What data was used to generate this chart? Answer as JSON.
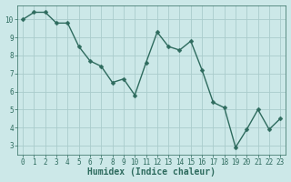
{
  "x": [
    0,
    1,
    2,
    3,
    4,
    5,
    6,
    7,
    8,
    9,
    10,
    11,
    12,
    13,
    14,
    15,
    16,
    17,
    18,
    19,
    20,
    21,
    22,
    23
  ],
  "y": [
    10.0,
    10.4,
    10.4,
    9.8,
    9.8,
    8.5,
    7.7,
    7.4,
    6.5,
    6.7,
    5.8,
    7.6,
    9.3,
    8.5,
    8.3,
    8.8,
    7.2,
    5.4,
    5.1,
    2.9,
    3.9,
    5.0,
    3.9,
    4.5
  ],
  "color": "#2e6b5e",
  "bg_color": "#cce8e8",
  "grid_color_major": "#aacccc",
  "grid_color_minor": "#bbdddd",
  "xlabel": "Humidex (Indice chaleur)",
  "ylim": [
    2.5,
    10.8
  ],
  "xlim": [
    -0.5,
    23.5
  ],
  "yticks": [
    3,
    4,
    5,
    6,
    7,
    8,
    9,
    10
  ],
  "xticks": [
    0,
    1,
    2,
    3,
    4,
    5,
    6,
    7,
    8,
    9,
    10,
    11,
    12,
    13,
    14,
    15,
    16,
    17,
    18,
    19,
    20,
    21,
    22,
    23
  ],
  "tick_fontsize": 5.5,
  "xlabel_fontsize": 7.0,
  "linewidth": 1.0,
  "markersize": 2.5,
  "fig_width": 3.2,
  "fig_height": 2.0,
  "dpi": 100
}
